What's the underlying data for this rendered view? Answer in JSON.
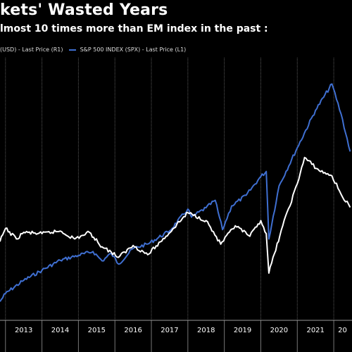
{
  "title": "kets' Wasted Years",
  "subtitle": "lmost 10 times more than EM index in the past :",
  "legend": [
    {
      "label": "(USD) - Last Price (R1)",
      "color": "#ffffff"
    },
    {
      "label": "S&P 500 INDEX (SPX) - Last Price (L1)",
      "color": "#3f6fd1"
    }
  ],
  "chart_data": {
    "type": "line",
    "x_ticks": [
      "2013",
      "2014",
      "2015",
      "2016",
      "2017",
      "2018",
      "2019",
      "2020",
      "2021",
      "20"
    ],
    "x_range": [
      2012.85,
      2022.5
    ],
    "grid": true,
    "series": [
      {
        "color": "#3f6fd1",
        "axis": "left",
        "y_range": [
          1000,
          5200
        ],
        "x": [
          2012.85,
          2013.0,
          2013.5,
          2014.0,
          2014.5,
          2015.0,
          2015.4,
          2015.65,
          2015.9,
          2016.1,
          2016.5,
          2016.9,
          2017.5,
          2018.0,
          2018.1,
          2018.5,
          2018.75,
          2018.95,
          2019.2,
          2019.6,
          2020.0,
          2020.15,
          2020.22,
          2020.5,
          2021.0,
          2021.5,
          2021.95,
          2022.2,
          2022.45
        ],
        "values": [
          1300,
          1430,
          1640,
          1800,
          1960,
          2040,
          2100,
          1950,
          2070,
          1900,
          2150,
          2220,
          2430,
          2780,
          2650,
          2800,
          2920,
          2450,
          2830,
          3000,
          3300,
          3380,
          2300,
          3150,
          3760,
          4360,
          4780,
          4300,
          3700
        ]
      },
      {
        "color": "#ffffff",
        "axis": "right",
        "y_range": [
          700,
          1700
        ],
        "x": [
          2012.85,
          2013.0,
          2013.3,
          2013.5,
          2014.0,
          2014.5,
          2014.9,
          2015.3,
          2015.65,
          2015.9,
          2016.1,
          2016.5,
          2016.9,
          2017.4,
          2018.0,
          2018.5,
          2018.9,
          2019.3,
          2019.7,
          2020.0,
          2020.15,
          2020.22,
          2020.6,
          2021.0,
          2021.2,
          2021.6,
          2021.95,
          2022.2,
          2022.45
        ],
        "values": [
          1000,
          1050,
          1010,
          1035,
          1030,
          1040,
          1010,
          1035,
          980,
          960,
          940,
          985,
          950,
          1020,
          1110,
          1080,
          990,
          1060,
          1020,
          1080,
          1030,
          880,
          1060,
          1220,
          1320,
          1270,
          1250,
          1180,
          1130
        ]
      }
    ]
  }
}
